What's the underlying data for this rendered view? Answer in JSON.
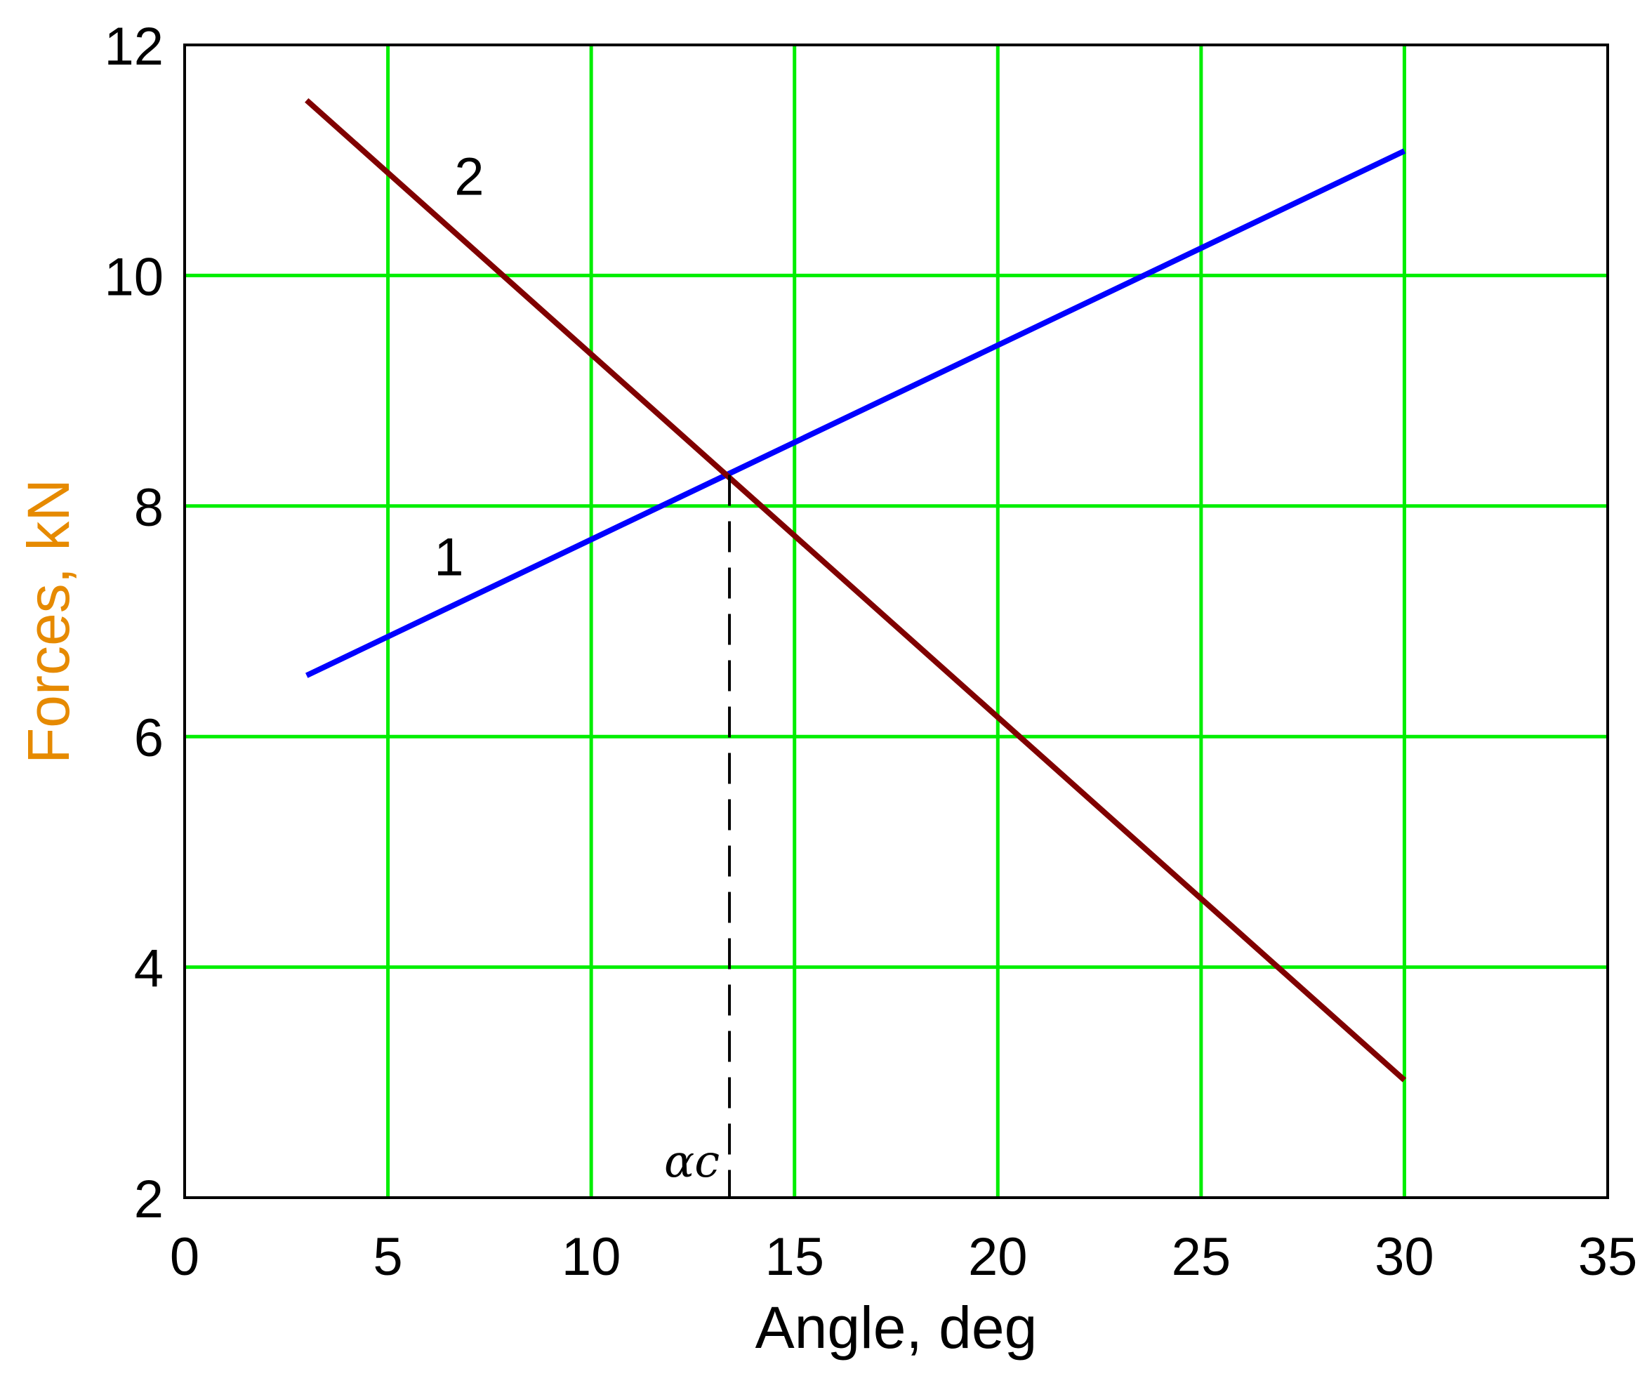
{
  "chart_data": {
    "type": "line",
    "xlabel": "Angle, deg",
    "ylabel": "Forces, kN",
    "xlim": [
      0,
      35
    ],
    "ylim": [
      2,
      12
    ],
    "x_ticks": [
      0,
      5,
      10,
      15,
      20,
      25,
      30,
      35
    ],
    "y_ticks": [
      2,
      4,
      6,
      8,
      10,
      12
    ],
    "grid": true,
    "legend": "none",
    "series": [
      {
        "name": "1",
        "color": "#0000ff",
        "x": [
          3,
          30
        ],
        "y": [
          6.53,
          11.08
        ]
      },
      {
        "name": "2",
        "color": "#800000",
        "x": [
          3,
          30
        ],
        "y": [
          11.52,
          3.02
        ]
      }
    ],
    "series_label_positions": [
      {
        "text": "1",
        "x": 6.5,
        "y": 7.4
      },
      {
        "text": "2",
        "x": 7.0,
        "y": 10.7
      }
    ],
    "annotations": [
      {
        "type": "vertical-dashed-line",
        "x": 13.4,
        "y_from": 2,
        "y_to": 8.27,
        "label": "αc"
      }
    ],
    "colors": {
      "grid": "#00ee00",
      "axis": "#000000",
      "xlabel": "#000000",
      "ylabel": "#e68a00"
    }
  }
}
